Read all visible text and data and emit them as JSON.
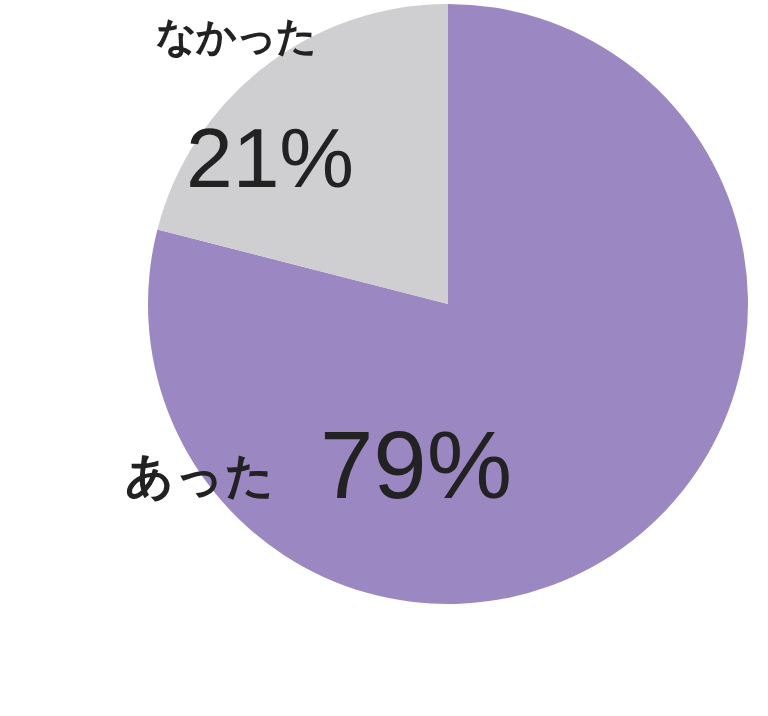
{
  "chart_data": {
    "type": "pie",
    "categories": [
      "あった",
      "なかった"
    ],
    "values": [
      79,
      21
    ],
    "colors": [
      "#9b87c1",
      "#cfcfd1"
    ],
    "value_labels": [
      "79%",
      "21%"
    ]
  }
}
